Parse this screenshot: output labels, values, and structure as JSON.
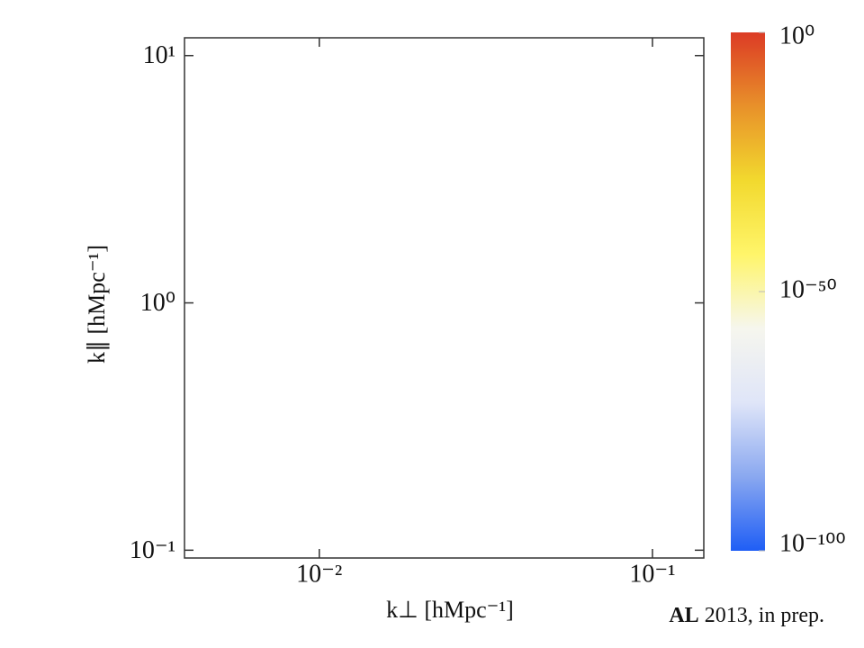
{
  "chart_data": {
    "type": "heatmap",
    "x_label": "k⊥ [hMpc⁻¹]",
    "y_label": "k∥ [hMpc⁻¹]",
    "credit_bold": "AL",
    "credit": "2013, in prep.",
    "xlog": true,
    "ylog": true,
    "xlim": [
      0.00394,
      0.1426
    ],
    "ylim": [
      0.093,
      11.8
    ],
    "xticks": [
      {
        "value": 0.01,
        "label": "10⁻²"
      },
      {
        "value": 0.1,
        "label": "10⁻¹"
      }
    ],
    "yticks": [
      {
        "value": 0.1,
        "label": "10⁻¹"
      },
      {
        "value": 1,
        "label": "10⁰"
      },
      {
        "value": 10,
        "label": "10¹"
      }
    ],
    "colorbar": {
      "log": true,
      "lim": [
        1e-100,
        1
      ],
      "ticks": [
        {
          "value": 1e-100,
          "label": "10⁻¹⁰⁰"
        },
        {
          "value": 1e-50,
          "label": "10⁻⁵⁰"
        },
        {
          "value": 1,
          "label": "10⁰"
        }
      ],
      "colors": [
        "#1f5ef5",
        "#8aa8f0",
        "#dfe5f8",
        "#f6f6ee",
        "#fff56a",
        "#f2d92e",
        "#e8912a",
        "#dc3b25"
      ]
    }
  }
}
